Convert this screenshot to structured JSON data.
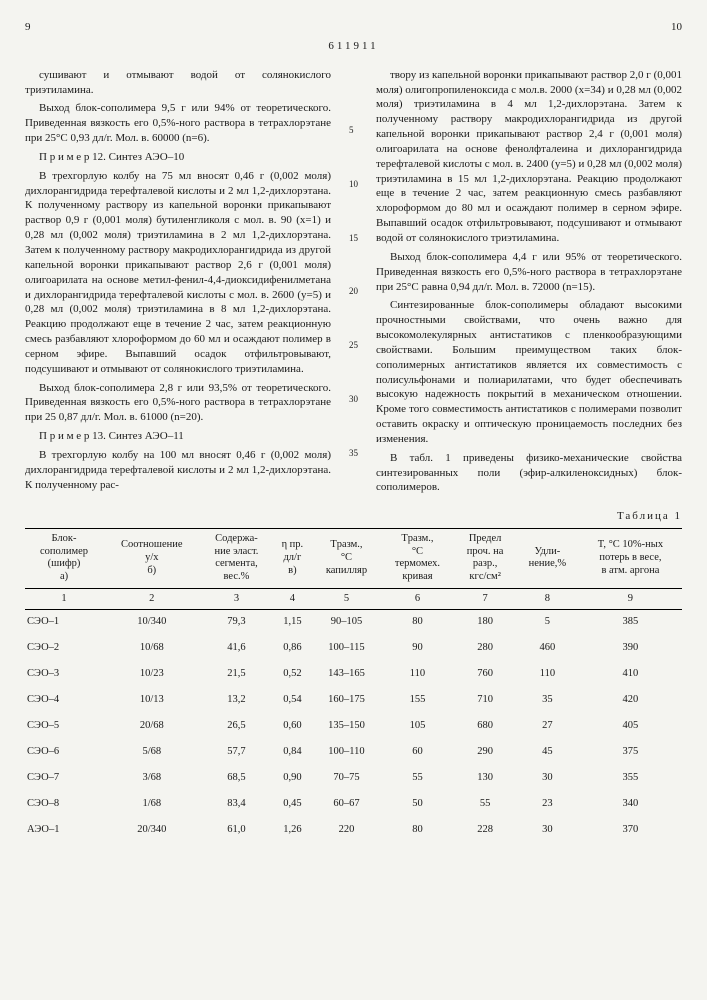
{
  "pageLeft": "9",
  "pageRight": "10",
  "docId": "611911",
  "colLeft": {
    "p1": "сушивают и отмывают водой от солянокислого триэтиламина.",
    "p2": "Выход блок-сополимера 9,5 г или 94% от теоретического. Приведенная вязкость его 0,5%-ного раствора в тетрахлорэтане при 25°С 0,93 дл/г. Мол. в. 60000 (n=6).",
    "p3": "П р и м е р 12. Синтез АЭО–10",
    "p4": "В трехгорлую колбу на 75 мл вносят 0,46 г (0,002 моля) дихлорангидрида терефталевой кислоты и 2 мл 1,2-дихлорэтана. К полученному раствору из капельной воронки прикапывают раствор 0,9 г (0,001 моля) бутиленгликоля с мол. в. 90 (x=1) и 0,28 мл (0,002 моля) триэтиламина в 2 мл 1,2-дихлорэтана. Затем к полученному раствору макродихлорангидрида из другой капельной воронки прикапывают раствор 2,6 г (0,001 моля) олигоарилата на основе метил-фенил-4,4-диоксидифенилметана и дихлорангидрида терефталевой кислоты с мол. в. 2600 (y=5) и 0,28 мл (0,002 моля) триэтиламина в 8 мл 1,2-дихлорэтана. Реакцию продолжают еще в течение 2 час, затем реакционную смесь разбавляют хлороформом до 60 мл и осаждают полимер в серном эфире. Выпавший осадок отфильтровывают, подсушивают и отмывают от солянокислого триэтиламина.",
    "p5": "Выход блок-сополимера 2,8 г или 93,5% от теоретического. Приведенная вязкость его 0,5%-ного раствора в тетрахлорэтане при 25 0,87 дл/г. Мол. в. 61000 (n=20).",
    "p6": "П р и м е р 13. Синтез АЭО–11",
    "p7": "В трехгорлую колбу на 100 мл вносят 0,46 г (0,002 моля) дихлорангидрида терефталевой кислоты и 2 мл 1,2-дихлорэтана. К полученному рас-"
  },
  "colRight": {
    "p1": "твору из капельной воронки прикапывают раствор 2,0 г (0,001 моля) олигопропиленоксида с мол.в. 2000 (x=34) и 0,28 мл (0,002 моля) триэтиламина в 4 мл 1,2-дихлорэтана. Затем к полученному раствору макродихлорангидрида из другой капельной воронки прикапывают раствор 2,4 г (0,001 моля) олигоарилата на основе фенолфталеина и дихлорангидрида терефталевой кислоты с мол. в. 2400 (y=5) и 0,28 мл (0,002 моля) триэтиламина в 15 мл 1,2-дихлорэтана. Реакцию продолжают еще в течение 2 час, затем реакционную смесь разбавляют хлороформом до 80 мл и осаждают полимер в серном эфире. Выпавший осадок отфильтровывают, подсушивают и отмывают водой от солянокислого триэтиламина.",
    "p2": "Выход блок-сополимера 4,4 г или 95% от теоретического. Приведенная вязкость его 0,5%-ного раствора в тетрахлорэтане при 25°С равна 0,94 дл/г. Мол. в. 72000 (n=15).",
    "p3": "Синтезированные блок-сополимеры обладают высокими прочностными свойствами, что очень важно для высокомолекулярных антистатиков с пленкообразующими свойствами. Большим преимуществом таких блок-сополимерных антистатиков является их совместимость с полисульфонами и полиарилатами, что будет обеспечивать высокую надежность покрытий в механическом отношении. Кроме того совместимость антистатиков с полимерами позволит оставить окраску и оптическую проницаемость последних без изменения.",
    "p4": "В табл. 1 приведены физико-механические свойства синтезированных поли (эфир-алкиленоксидных) блок-сополимеров."
  },
  "lineNums": [
    "5",
    "10",
    "15",
    "20",
    "25",
    "30",
    "35"
  ],
  "tableCaption": "Таблица 1",
  "table": {
    "headers": [
      "Блок-\nсополимер\n(шифр)\na)",
      "Соотношение\ny/x\nб)",
      "Содержа-\nние эласт.\nсегмента,\nвес.%",
      "η пр.\nдл/г\nв)",
      "Tразм.,\n°С\nкапилляр",
      "Tразм.,\n°С\nтермомех.\nкривая",
      "Предел\nпроч. на\nразр.,\nкгс/см²",
      "Удли-\nнение,%",
      "T, °С 10%-ных\nпотерь в весе,\nв атм. аргона"
    ],
    "colNums": [
      "1",
      "2",
      "3",
      "4",
      "5",
      "6",
      "7",
      "8",
      "9"
    ],
    "rows": [
      [
        "СЭО–1",
        "10/340",
        "79,3",
        "1,15",
        "90–105",
        "80",
        "180",
        "5",
        "385"
      ],
      [
        "СЭО–2",
        "10/68",
        "41,6",
        "0,86",
        "100–115",
        "90",
        "280",
        "460",
        "390"
      ],
      [
        "СЭО–3",
        "10/23",
        "21,5",
        "0,52",
        "143–165",
        "110",
        "760",
        "110",
        "410"
      ],
      [
        "СЭО–4",
        "10/13",
        "13,2",
        "0,54",
        "160–175",
        "155",
        "710",
        "35",
        "420"
      ],
      [
        "СЭО–5",
        "20/68",
        "26,5",
        "0,60",
        "135–150",
        "105",
        "680",
        "27",
        "405"
      ],
      [
        "СЭО–6",
        "5/68",
        "57,7",
        "0,84",
        "100–110",
        "60",
        "290",
        "45",
        "375"
      ],
      [
        "СЭО–7",
        "3/68",
        "68,5",
        "0,90",
        "70–75",
        "55",
        "130",
        "30",
        "355"
      ],
      [
        "СЭО–8",
        "1/68",
        "83,4",
        "0,45",
        "60–67",
        "50",
        "55",
        "23",
        "340"
      ],
      [
        "АЭО–1",
        "20/340",
        "61,0",
        "1,26",
        "220",
        "80",
        "228",
        "30",
        "370"
      ]
    ]
  }
}
